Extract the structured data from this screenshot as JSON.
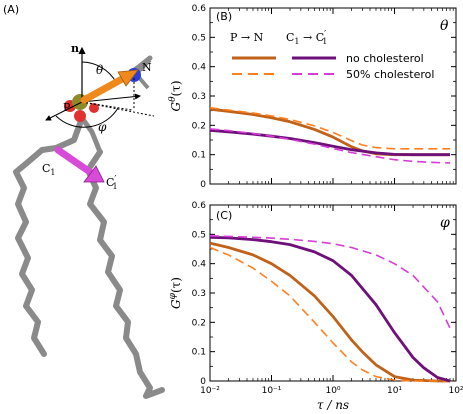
{
  "figure": {
    "panel_a_label": "(A)",
    "panel_b_label": "(B)",
    "panel_c_label": "(C)",
    "molecule": {
      "n_label": "n",
      "theta_label": "θ",
      "phi_label": "φ",
      "p_label": "P",
      "n_atom_label": "N",
      "c1_label": "C",
      "c1_sub": "1",
      "c1p_label": "C",
      "c1p_sub": "1",
      "c1p_prime": "′",
      "colors": {
        "chain": "#8a8a8a",
        "pn_vector": "#f0891c",
        "cc_vector": "#d84bd8",
        "phosphorus": "#8c8a2a",
        "nitrogen": "#2a3fd8",
        "oxygen": "#e03030"
      }
    },
    "legend": {
      "pn_label": "P → N",
      "cc_label": "C",
      "cc_sub1": "1",
      "cc_arrow": " → C",
      "cc_sub2": "1",
      "cc_prime": "′",
      "no_chol": "no cholesterol",
      "chol50": "50% cholesterol"
    },
    "colors": {
      "pn_solid": "#c0621a",
      "pn_dashed": "#ff7f1e",
      "cc_solid": "#6e0f7a",
      "cc_dashed": "#d83cd8"
    }
  },
  "chart_data": [
    {
      "type": "line",
      "panel": "B",
      "corner_label": "θ",
      "ylabel": "G",
      "ylabel_sup": "θ",
      "ylabel_arg": "(τ)",
      "xlabel": "",
      "xscale": "log",
      "xlim": [
        0.01,
        100
      ],
      "ylim": [
        0,
        0.6
      ],
      "yticks": [
        "0",
        "0.1",
        "0.2",
        "0.3",
        "0.4",
        "0.5",
        "0.6"
      ],
      "xticks": [],
      "series": [
        {
          "name": "P → N",
          "condition": "no cholesterol",
          "style": "solid",
          "color": "#c0621a",
          "x": [
            0.01,
            0.02,
            0.05,
            0.1,
            0.2,
            0.5,
            1,
            2,
            3,
            5,
            10,
            20,
            50,
            80
          ],
          "y": [
            0.255,
            0.248,
            0.237,
            0.226,
            0.212,
            0.186,
            0.16,
            0.127,
            0.113,
            0.103,
            0.1,
            0.1,
            0.1,
            0.1
          ]
        },
        {
          "name": "P → N",
          "condition": "50% cholesterol",
          "style": "dashed",
          "color": "#ff7f1e",
          "x": [
            0.01,
            0.02,
            0.05,
            0.1,
            0.2,
            0.5,
            1,
            2,
            3,
            5,
            10,
            20,
            50,
            80
          ],
          "y": [
            0.26,
            0.252,
            0.242,
            0.232,
            0.22,
            0.198,
            0.176,
            0.148,
            0.133,
            0.124,
            0.12,
            0.12,
            0.12,
            0.12
          ]
        },
        {
          "name": "C1 → C1′",
          "condition": "no cholesterol",
          "style": "solid",
          "color": "#6e0f7a",
          "x": [
            0.01,
            0.02,
            0.05,
            0.1,
            0.2,
            0.5,
            1,
            2,
            5,
            10,
            20,
            50,
            80
          ],
          "y": [
            0.183,
            0.178,
            0.17,
            0.163,
            0.155,
            0.141,
            0.129,
            0.117,
            0.106,
            0.101,
            0.1,
            0.1,
            0.1
          ]
        },
        {
          "name": "C1 → C1′",
          "condition": "50% cholesterol",
          "style": "dashed",
          "color": "#d83cd8",
          "x": [
            0.01,
            0.02,
            0.05,
            0.1,
            0.2,
            0.5,
            1,
            2,
            5,
            10,
            20,
            50,
            80
          ],
          "y": [
            0.188,
            0.182,
            0.172,
            0.163,
            0.152,
            0.136,
            0.121,
            0.107,
            0.093,
            0.083,
            0.077,
            0.073,
            0.072
          ]
        }
      ]
    },
    {
      "type": "line",
      "panel": "C",
      "corner_label": "φ",
      "ylabel": "G",
      "ylabel_sup": "φ",
      "ylabel_arg": "(τ)",
      "xlabel": "τ / ns",
      "xscale": "log",
      "xlim": [
        0.01,
        100
      ],
      "ylim": [
        0,
        0.6
      ],
      "yticks": [
        "0",
        "0.1",
        "0.2",
        "0.3",
        "0.4",
        "0.5",
        "0.6"
      ],
      "xticks": [
        "10⁻²",
        "10⁻¹",
        "10⁰",
        "10¹",
        "10²"
      ],
      "series": [
        {
          "name": "P → N",
          "condition": "no cholesterol",
          "style": "solid",
          "color": "#c0621a",
          "x": [
            0.01,
            0.02,
            0.05,
            0.1,
            0.2,
            0.5,
            1,
            2,
            3,
            5,
            10,
            20,
            50,
            80
          ],
          "y": [
            0.47,
            0.455,
            0.43,
            0.4,
            0.36,
            0.29,
            0.22,
            0.14,
            0.1,
            0.055,
            0.015,
            0.003,
            0.0,
            0.0
          ]
        },
        {
          "name": "P → N",
          "condition": "50% cholesterol",
          "style": "dashed",
          "color": "#ff7f1e",
          "x": [
            0.01,
            0.02,
            0.05,
            0.1,
            0.2,
            0.5,
            1,
            2,
            3,
            5,
            10,
            20,
            50,
            80
          ],
          "y": [
            0.455,
            0.43,
            0.385,
            0.34,
            0.29,
            0.2,
            0.13,
            0.065,
            0.038,
            0.015,
            0.003,
            0.0,
            0.0,
            0.0
          ]
        },
        {
          "name": "C1 → C1′",
          "condition": "no cholesterol",
          "style": "solid",
          "color": "#6e0f7a",
          "x": [
            0.01,
            0.02,
            0.05,
            0.1,
            0.2,
            0.5,
            1,
            2,
            5,
            10,
            20,
            30,
            50,
            80
          ],
          "y": [
            0.49,
            0.488,
            0.482,
            0.475,
            0.465,
            0.44,
            0.41,
            0.36,
            0.26,
            0.165,
            0.08,
            0.045,
            0.012,
            0.0
          ]
        },
        {
          "name": "C1 → C1′",
          "condition": "50% cholesterol",
          "style": "dashed",
          "color": "#d83cd8",
          "x": [
            0.01,
            0.02,
            0.05,
            0.1,
            0.2,
            0.5,
            1,
            2,
            5,
            10,
            20,
            50,
            80
          ],
          "y": [
            0.495,
            0.493,
            0.49,
            0.487,
            0.483,
            0.476,
            0.468,
            0.455,
            0.43,
            0.4,
            0.36,
            0.27,
            0.18
          ]
        }
      ]
    }
  ]
}
